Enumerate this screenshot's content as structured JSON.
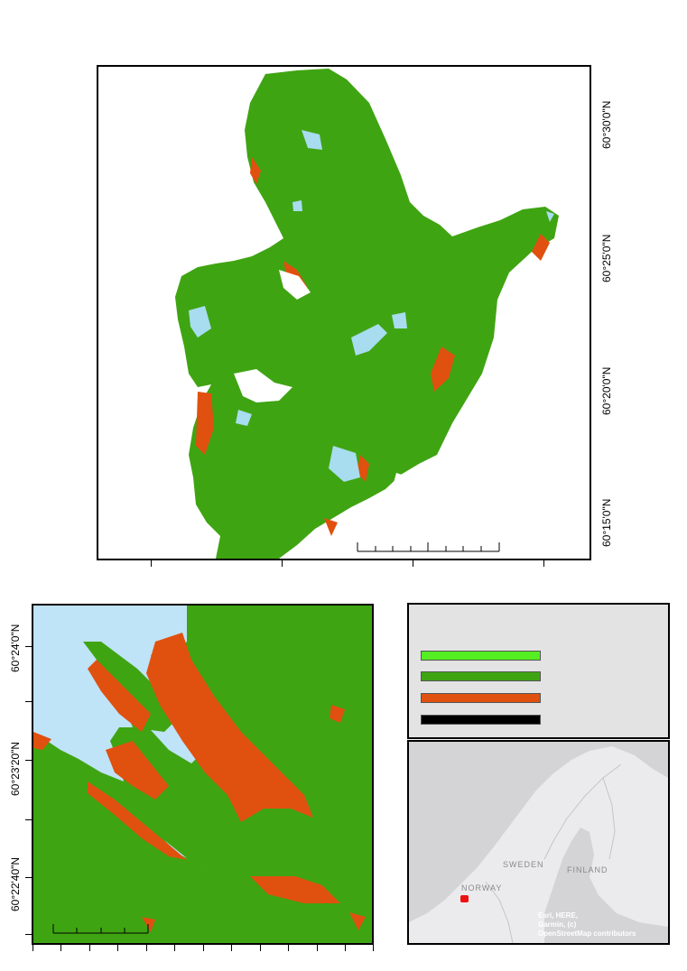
{
  "main_map": {
    "lat_labels": [
      "60°30'0\"N",
      "60°25'0\"N",
      "60°20'0\"N",
      "60°15'0\"N"
    ]
  },
  "inset_map": {
    "lat_labels": [
      "60°24'0\"N",
      "60°23'20\"N",
      "60°22'40\"N"
    ]
  },
  "legend": {
    "swatches": [
      {
        "color": "#55ee22"
      },
      {
        "color": "#3fa412"
      },
      {
        "color": "#e0500e"
      },
      {
        "color": "#000000"
      }
    ]
  },
  "locator_map": {
    "places": [
      "SWEDEN",
      "FINLAND",
      "NORWAY"
    ],
    "attribution": [
      "Esri, HERE,",
      "Garmin, (c)",
      "OpenStreetMap contributors"
    ]
  },
  "colors": {
    "forest": "#3fa412",
    "bright_green": "#55ee22",
    "bare": "#e0500e",
    "water": "#a8dcef",
    "sea": "#bfe3f7"
  }
}
